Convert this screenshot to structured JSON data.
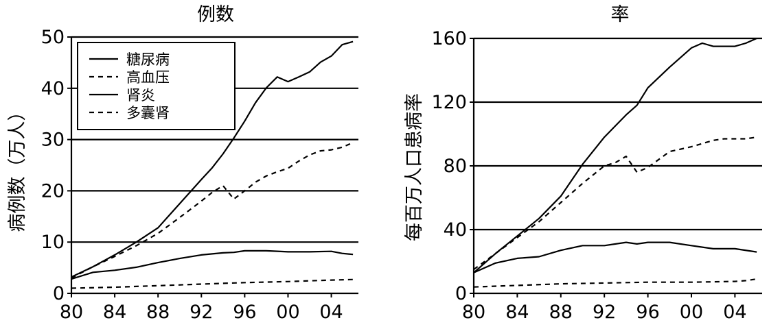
{
  "chart_data": [
    {
      "type": "line",
      "title": "例数",
      "xlabel": "",
      "ylabel": "病例数（万人）",
      "xlim": [
        1980,
        2006.5
      ],
      "ylim": [
        0,
        50
      ],
      "xticks": [
        1980,
        1984,
        1988,
        1992,
        1996,
        2000,
        2004
      ],
      "xtick_labels": [
        "80",
        "84",
        "88",
        "92",
        "96",
        "00",
        "04"
      ],
      "yticks": [
        0,
        10,
        20,
        30,
        40,
        50
      ],
      "ytick_labels": [
        "0",
        "10",
        "20",
        "30",
        "40",
        "50"
      ],
      "grid": "horizontal",
      "legend_position": "top-left",
      "series": [
        {
          "name": "糖尿病",
          "style": "solid",
          "x": [
            1980,
            1982,
            1984,
            1986,
            1988,
            1990,
            1992,
            1993,
            1994,
            1995,
            1996,
            1997,
            1998,
            1999,
            2000,
            2001,
            2002,
            2003,
            2004,
            2005,
            2006
          ],
          "y": [
            3.2,
            5.2,
            7.5,
            10.0,
            12.8,
            17.5,
            22.2,
            24.5,
            27.2,
            30.3,
            33.6,
            37.2,
            40.1,
            42.2,
            41.3,
            42.2,
            43.2,
            45.1,
            46.3,
            48.5,
            49.1
          ]
        },
        {
          "name": "高血压",
          "style": "dashed",
          "x": [
            1980,
            1982,
            1984,
            1986,
            1988,
            1990,
            1992,
            1993,
            1994,
            1995,
            1996,
            1997,
            1998,
            1999,
            2000,
            2001,
            2002,
            2003,
            2004,
            2005,
            2006
          ],
          "y": [
            3.0,
            5.2,
            7.2,
            9.3,
            11.7,
            14.8,
            18.0,
            19.7,
            21.0,
            18.4,
            20.0,
            21.7,
            22.9,
            23.7,
            24.4,
            25.8,
            27.0,
            27.8,
            28.0,
            28.5,
            29.4
          ]
        },
        {
          "name": "肾炎",
          "style": "solid",
          "x": [
            1980,
            1982,
            1984,
            1986,
            1988,
            1990,
            1992,
            1994,
            1995,
            1996,
            1998,
            2000,
            2002,
            2004,
            2005,
            2006
          ],
          "y": [
            2.8,
            4.1,
            4.5,
            5.1,
            6.0,
            6.8,
            7.5,
            7.9,
            8.0,
            8.3,
            8.3,
            8.1,
            8.1,
            8.2,
            7.8,
            7.6
          ]
        },
        {
          "name": "多囊肾",
          "style": "dashed",
          "x": [
            1980,
            1984,
            1988,
            1992,
            1996,
            2000,
            2004,
            2006
          ],
          "y": [
            1.0,
            1.2,
            1.5,
            1.8,
            2.1,
            2.3,
            2.6,
            2.7
          ]
        }
      ]
    },
    {
      "type": "line",
      "title": "率",
      "xlabel": "",
      "ylabel": "每百万人口患病率",
      "xlim": [
        1980,
        2006.5
      ],
      "ylim": [
        0,
        160
      ],
      "xticks": [
        1980,
        1984,
        1988,
        1992,
        1996,
        2000,
        2004
      ],
      "xtick_labels": [
        "80",
        "84",
        "88",
        "92",
        "96",
        "00",
        "04"
      ],
      "yticks": [
        0,
        40,
        80,
        120,
        160
      ],
      "ytick_labels": [
        "0",
        "40",
        "80",
        "120",
        "160"
      ],
      "grid": "horizontal",
      "series": [
        {
          "name": "糖尿病",
          "style": "solid",
          "x": [
            1980,
            1982,
            1984,
            1986,
            1988,
            1990,
            1992,
            1993,
            1994,
            1995,
            1996,
            1998,
            2000,
            2001,
            2002,
            2003,
            2004,
            2005,
            2006
          ],
          "y": [
            13,
            25,
            36,
            47,
            61,
            81,
            98,
            105,
            112,
            118,
            129,
            142,
            154,
            157,
            155,
            155,
            155,
            157,
            160
          ]
        },
        {
          "name": "高血压",
          "style": "dashed",
          "x": [
            1980,
            1982,
            1984,
            1986,
            1988,
            1990,
            1992,
            1993,
            1994,
            1995,
            1996,
            1998,
            2000,
            2002,
            2003,
            2004,
            2005,
            2006
          ],
          "y": [
            15,
            25,
            35,
            45,
            57,
            69,
            80,
            82,
            86,
            76,
            79,
            89,
            92,
            96,
            97,
            97,
            97,
            98
          ]
        },
        {
          "name": "肾炎",
          "style": "solid",
          "x": [
            1980,
            1982,
            1984,
            1986,
            1988,
            1990,
            1992,
            1994,
            1995,
            1996,
            1998,
            2000,
            2002,
            2004,
            2006
          ],
          "y": [
            13,
            19,
            22,
            23,
            27,
            30,
            30,
            32,
            31,
            32,
            32,
            30,
            28,
            28,
            26
          ]
        },
        {
          "name": "多囊肾",
          "style": "dashed",
          "x": [
            1980,
            1984,
            1988,
            1992,
            1996,
            2000,
            2004,
            2005,
            2006
          ],
          "y": [
            4,
            5,
            6,
            6.5,
            7,
            7,
            7.5,
            8,
            9
          ]
        }
      ]
    }
  ]
}
